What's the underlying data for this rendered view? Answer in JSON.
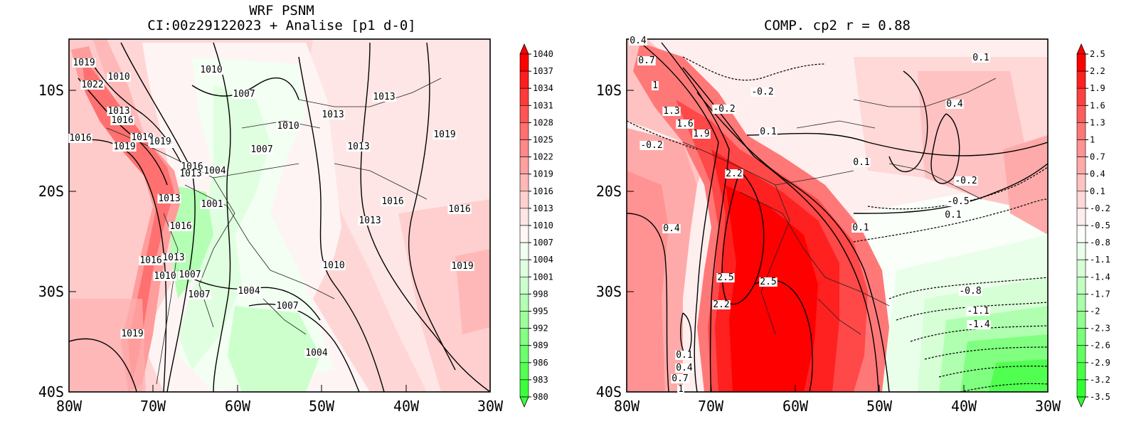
{
  "left_panel": {
    "title_line1": "WRF PSNM",
    "title_line2": "CI:00z29122023 + Analise  [p1 d-0]",
    "x_ticks": [
      "80W",
      "70W",
      "60W",
      "50W",
      "40W",
      "30W"
    ],
    "y_ticks": [
      "10S",
      "20S",
      "30S",
      "40S"
    ],
    "colorbar": {
      "labels": [
        "1040",
        "1037",
        "1034",
        "1031",
        "1028",
        "1025",
        "1022",
        "1019",
        "1016",
        "1013",
        "1010",
        "1007",
        "1004",
        "1001",
        "998",
        "995",
        "992",
        "989",
        "986",
        "983",
        "980"
      ],
      "colors": [
        "#ff0000",
        "#ff1e1e",
        "#ff3a3a",
        "#ff5555",
        "#ff6f6f",
        "#ff8888",
        "#ffa0a0",
        "#ffb8b8",
        "#ffd0d0",
        "#ffe6e6",
        "#fff6f6",
        "#f2fff2",
        "#e0ffe0",
        "#ccffcc",
        "#b4ffb4",
        "#9cff9c",
        "#84ff84",
        "#6cff6c",
        "#54ff54",
        "#3cff3c"
      ]
    },
    "contour_labels": [
      "1019",
      "1010",
      "1022",
      "1013",
      "1016",
      "1016",
      "1019",
      "1010",
      "1010",
      "1019",
      "1016",
      "1013",
      "1004",
      "1013",
      "1001",
      "1016",
      "1013",
      "1016",
      "1010",
      "1007",
      "1013",
      "1007",
      "1010",
      "1007",
      "1004",
      "1007",
      "1007",
      "1019",
      "1004",
      "1013",
      "1019",
      "1016",
      "1016",
      "1019",
      "1010",
      "1013",
      "1010",
      "1013"
    ]
  },
  "right_panel": {
    "title": "COMP. cp2  r =  0.88",
    "x_ticks": [
      "80W",
      "70W",
      "60W",
      "50W",
      "40W",
      "30W"
    ],
    "y_ticks": [
      "10S",
      "20S",
      "30S",
      "40S"
    ],
    "colorbar": {
      "labels": [
        "2.5",
        "2.2",
        "1.9",
        "1.6",
        "1.3",
        "1",
        "0.7",
        "0.4",
        "0.1",
        "-0.2",
        "-0.5",
        "-0.8",
        "-1.1",
        "-1.4",
        "-1.7",
        "-2",
        "-2.3",
        "-2.6",
        "-2.9",
        "-3.2",
        "-3.5"
      ],
      "colors": [
        "#ff0000",
        "#ff2020",
        "#ff4040",
        "#ff5c5c",
        "#ff7878",
        "#ff9292",
        "#ffaaaa",
        "#ffc2c2",
        "#ffd8d8",
        "#ffeeee",
        "#fafffa",
        "#eaffea",
        "#d6ffd6",
        "#c0ffc0",
        "#a8ffa8",
        "#90ff90",
        "#78ff78",
        "#60ff60",
        "#48ff48",
        "#30ff30"
      ]
    },
    "contour_labels": [
      "0.4",
      "0.7",
      "1",
      "1.3",
      "1.6",
      "1.9",
      "-0.2",
      "-0.2",
      "-0.2",
      "0.1",
      "2.2",
      "0.4",
      "2.5",
      "2.5",
      "2.2",
      "0.1",
      "0.4",
      "0.1",
      "-0.2",
      "-0.5",
      "0.1",
      "0.1",
      "-0.8",
      "-1.1",
      "-1.4",
      "0.1",
      "0.4",
      "0.7",
      "1"
    ]
  }
}
